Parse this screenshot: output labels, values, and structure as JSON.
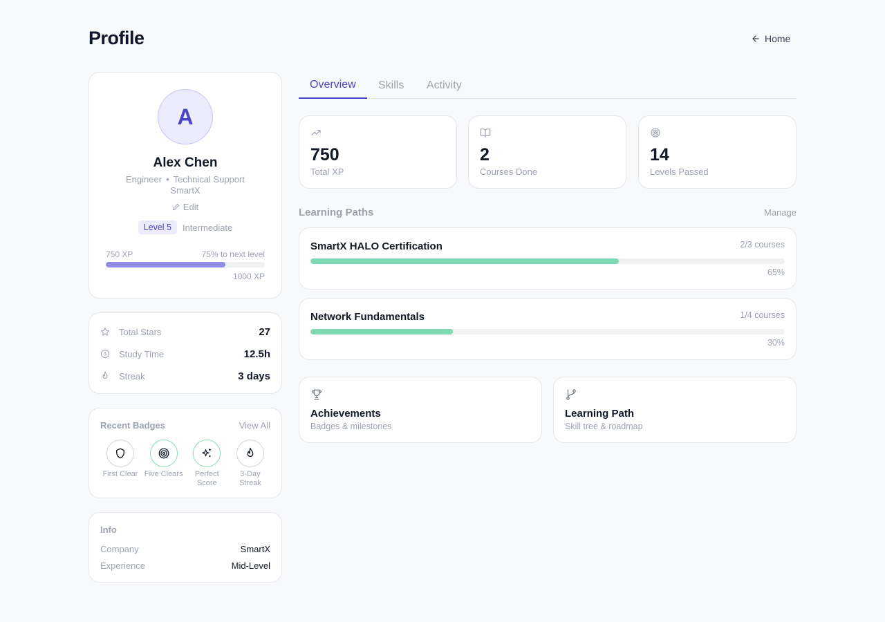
{
  "header": {
    "title": "Profile",
    "home_label": "Home"
  },
  "profile": {
    "avatar_initial": "A",
    "name": "Alex Chen",
    "role": "Engineer",
    "department": "Technical Support",
    "company": "SmartX",
    "edit_label": "Edit",
    "level_badge": "Level 5",
    "level_name": "Intermediate",
    "xp_current": "750 XP",
    "xp_next": "75% to next level",
    "xp_max": "1000 XP",
    "xp_progress": 0.75
  },
  "stats": [
    {
      "icon": "star-icon",
      "label": "Total Stars",
      "value": "27"
    },
    {
      "icon": "clock-icon",
      "label": "Study Time",
      "value": "12.5h"
    },
    {
      "icon": "flame-icon",
      "label": "Streak",
      "value": "3 days"
    }
  ],
  "badges": {
    "title": "Recent Badges",
    "view_all": "View All",
    "items": [
      {
        "icon": "shield-icon",
        "label": "First Clear"
      },
      {
        "icon": "target-icon",
        "label": "Five Clears"
      },
      {
        "icon": "sparkles-icon",
        "label": "Perfect Score"
      },
      {
        "icon": "flame-icon",
        "label": "3-Day Streak"
      }
    ]
  },
  "info": {
    "title": "Info",
    "rows": [
      {
        "key": "Company",
        "value": "SmartX"
      },
      {
        "key": "Experience",
        "value": "Mid-Level"
      }
    ]
  },
  "tabs": [
    {
      "label": "Overview",
      "active": true
    },
    {
      "label": "Skills",
      "active": false
    },
    {
      "label": "Activity",
      "active": false
    }
  ],
  "metrics": [
    {
      "icon": "trending-up-icon",
      "value": "750",
      "label": "Total XP"
    },
    {
      "icon": "book-open-icon",
      "value": "2",
      "label": "Courses Done"
    },
    {
      "icon": "target-icon",
      "value": "14",
      "label": "Levels Passed"
    }
  ],
  "learning_paths": {
    "title": "Learning Paths",
    "manage_label": "Manage",
    "items": [
      {
        "name": "SmartX HALO Certification",
        "courses": "2/3 courses",
        "percent_label": "65%",
        "progress": 0.65
      },
      {
        "name": "Network Fundamentals",
        "courses": "1/4 courses",
        "percent_label": "30%",
        "progress": 0.3
      }
    ]
  },
  "nav_cards": [
    {
      "icon": "trophy-icon",
      "title": "Achievements",
      "subtitle": "Badges & milestones"
    },
    {
      "icon": "git-branch-icon",
      "title": "Learning Path",
      "subtitle": "Skill tree & roadmap"
    }
  ],
  "colors": {
    "accent": "#4a44c6",
    "xp_bar": "#8f8be6",
    "path_bar": "#7ed9b4",
    "background": "#f8f9fb"
  }
}
